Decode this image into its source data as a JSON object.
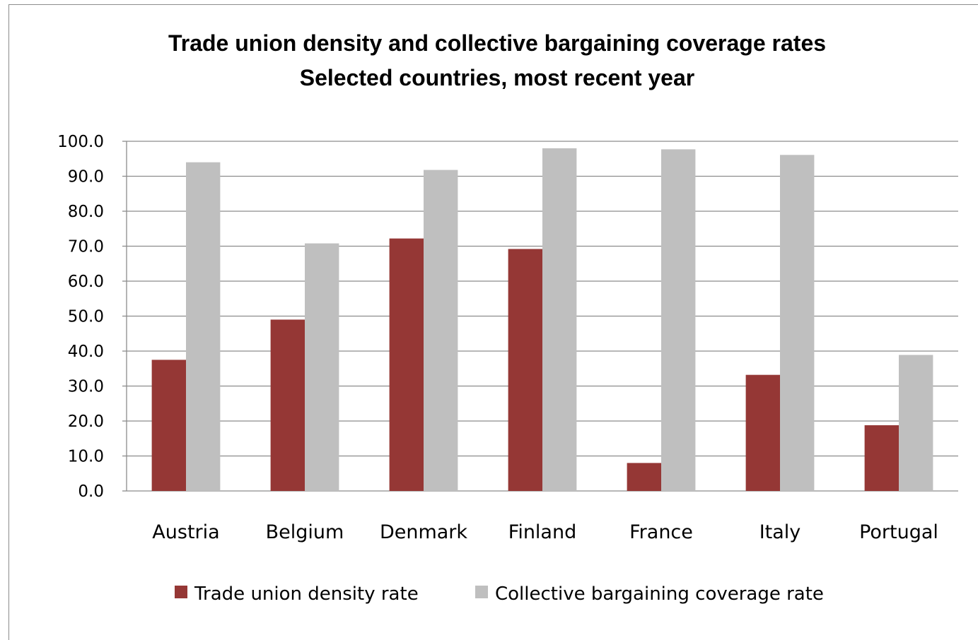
{
  "chart_data": {
    "type": "bar",
    "title": "Trade union density and collective bargaining coverage rates",
    "subtitle": "Selected countries, most recent year",
    "categories": [
      "Austria",
      "Belgium",
      "Denmark",
      "Finland",
      "France",
      "Italy",
      "Portugal"
    ],
    "series": [
      {
        "name": "Trade union density rate",
        "color": "#953735",
        "values": [
          37.5,
          49.0,
          72.2,
          69.2,
          8.0,
          33.2,
          18.8
        ]
      },
      {
        "name": "Collective bargaining coverage rate",
        "color": "#bfbfbf",
        "values": [
          94.0,
          70.8,
          91.8,
          98.0,
          97.7,
          96.1,
          38.9
        ]
      }
    ],
    "y_ticks": [
      "0.0",
      "10.0",
      "20.0",
      "30.0",
      "40.0",
      "50.0",
      "60.0",
      "70.0",
      "80.0",
      "90.0",
      "100.0"
    ],
    "ylim": [
      0,
      100
    ],
    "xlabel": "",
    "ylabel": "",
    "grid": true,
    "legend_position": "bottom"
  }
}
